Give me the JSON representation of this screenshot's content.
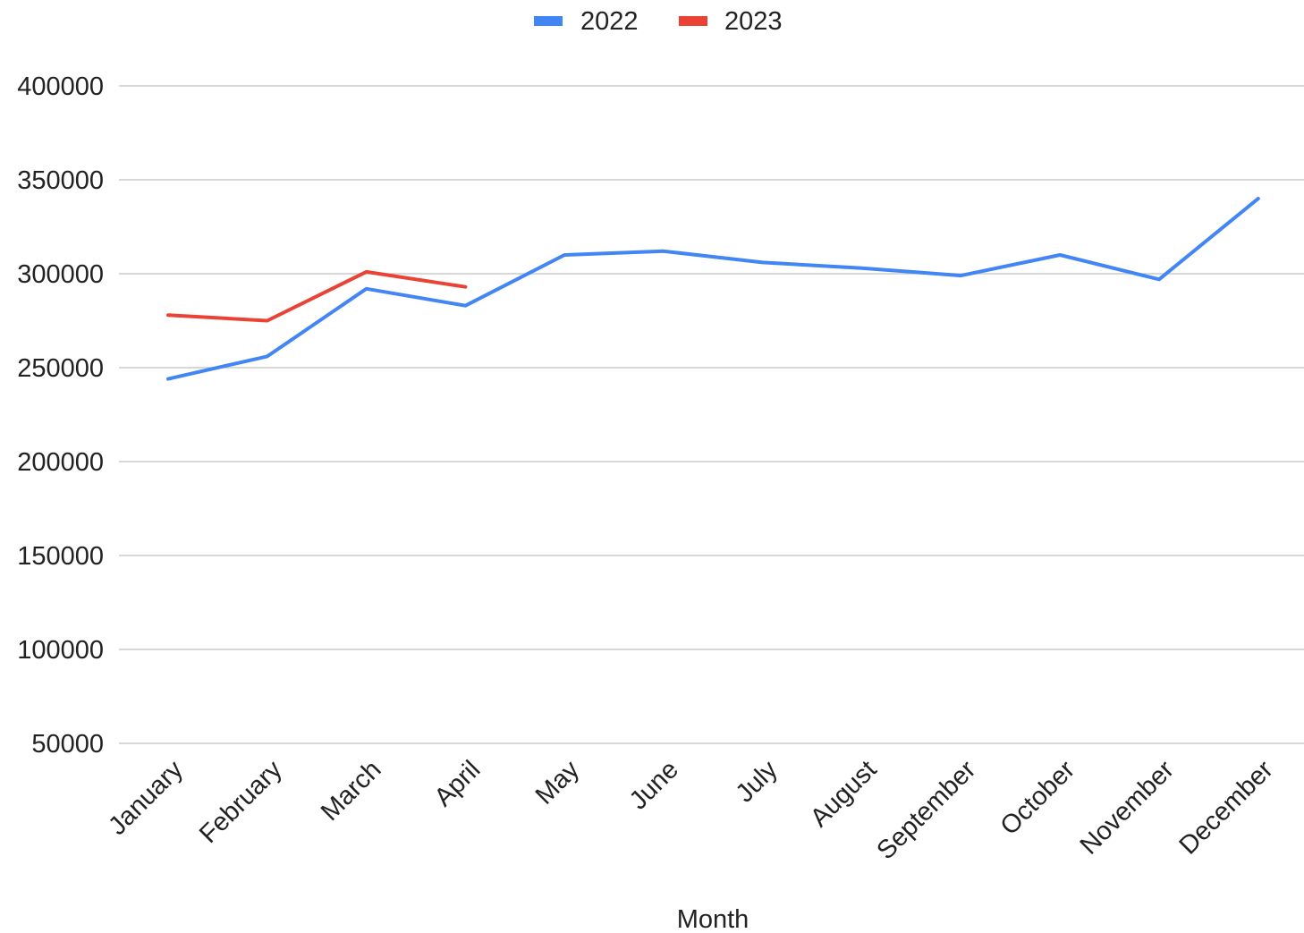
{
  "chart_data": {
    "type": "line",
    "title": "",
    "xlabel": "Month",
    "ylabel": "",
    "categories": [
      "January",
      "February",
      "March",
      "April",
      "May",
      "June",
      "July",
      "August",
      "September",
      "October",
      "November",
      "December"
    ],
    "yticks": [
      50000,
      100000,
      150000,
      200000,
      250000,
      300000,
      350000,
      400000
    ],
    "ylim": [
      50000,
      400000
    ],
    "grid": true,
    "legend_position": "top-center",
    "series": [
      {
        "name": "2022",
        "color": "#4285f4",
        "values": [
          244000,
          256000,
          292000,
          283000,
          310000,
          312000,
          306000,
          303000,
          299000,
          310000,
          297000,
          340000
        ]
      },
      {
        "name": "2023",
        "color": "#ea4335",
        "values": [
          278000,
          275000,
          301000,
          293000,
          null,
          null,
          null,
          null,
          null,
          null,
          null,
          null
        ]
      }
    ]
  }
}
